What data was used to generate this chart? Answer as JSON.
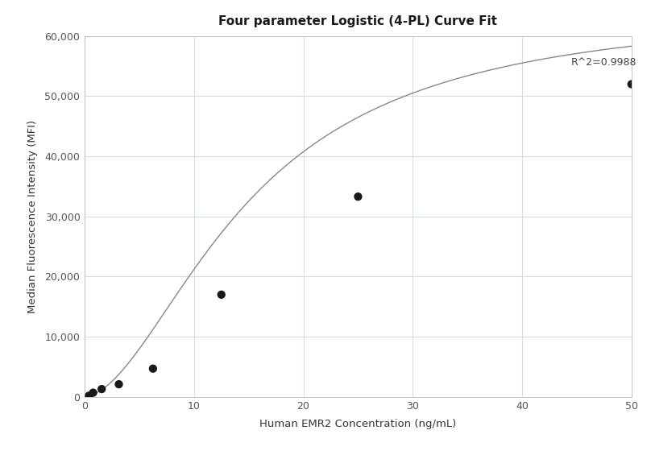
{
  "title": "Four parameter Logistic (4-PL) Curve Fit",
  "xlabel": "Human EMR2 Concentration (ng/mL)",
  "ylabel": "Median Fluorescence Intensity (MFI)",
  "scatter_x": [
    0.4,
    0.78,
    1.56,
    3.13,
    6.25,
    12.5,
    25.0,
    50.0
  ],
  "scatter_y": [
    200,
    700,
    1300,
    2100,
    4700,
    17000,
    33300,
    52000
  ],
  "r_squared": "R^2=0.9988",
  "r_squared_x": 44.5,
  "r_squared_y": 54800,
  "xlim": [
    0,
    50
  ],
  "ylim": [
    0,
    60000
  ],
  "xticks": [
    0,
    10,
    20,
    30,
    40,
    50
  ],
  "yticks": [
    0,
    10000,
    20000,
    30000,
    40000,
    50000,
    60000
  ],
  "dot_color": "#1a1a1a",
  "dot_size": 55,
  "line_color": "#888888",
  "grid_color": "#ccdcec",
  "background_color": "#ffffff",
  "title_fontsize": 11,
  "label_fontsize": 9.5,
  "tick_fontsize": 9,
  "annotation_fontsize": 9
}
